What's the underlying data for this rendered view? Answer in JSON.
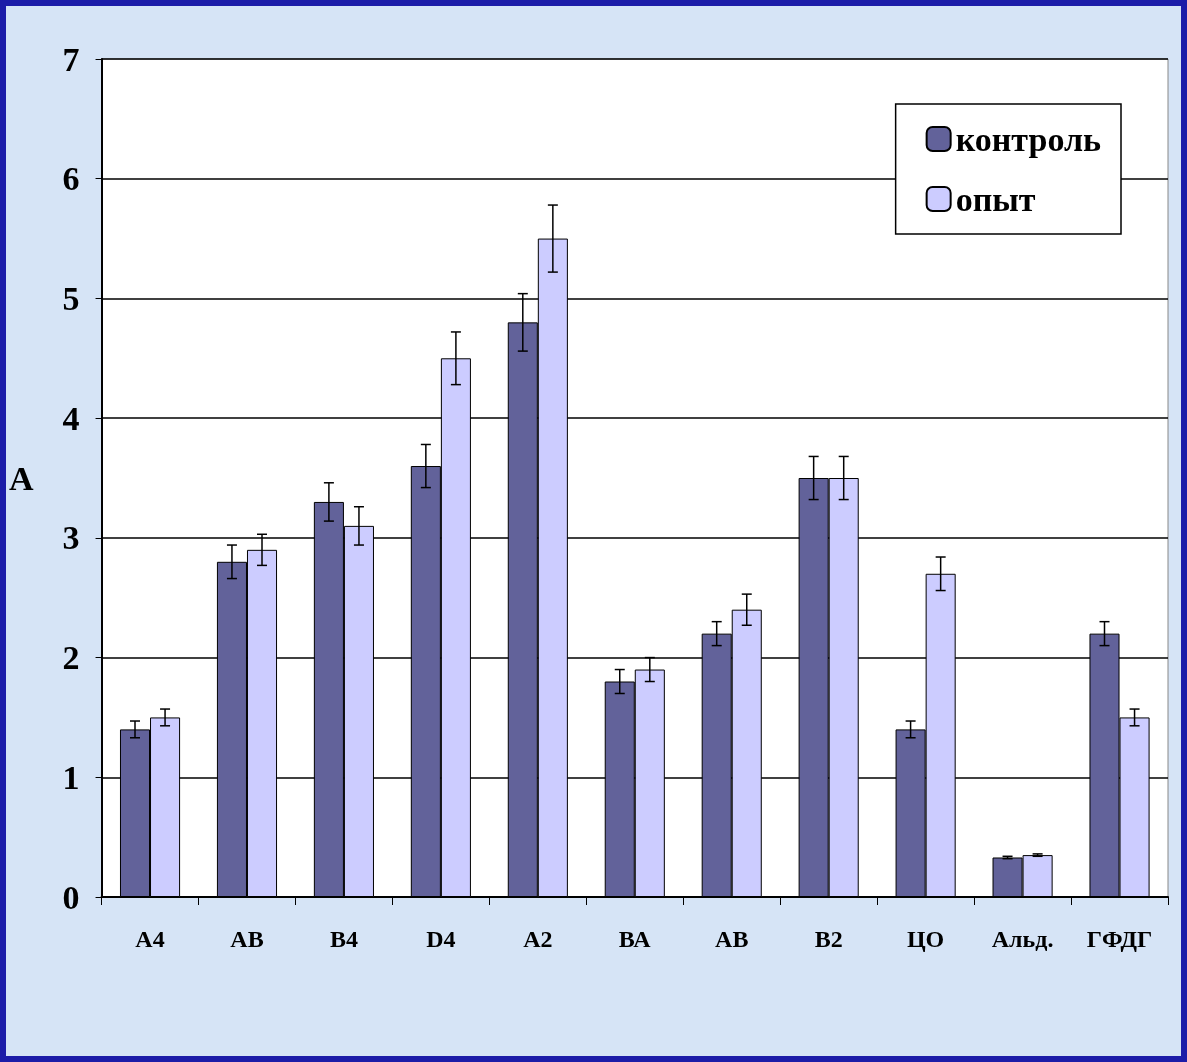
{
  "chart_data": {
    "type": "bar",
    "ylabel": "А",
    "categories": [
      "А4",
      "АВ",
      "В4",
      "D4",
      "А2",
      "ВА",
      "АВ",
      "В2",
      "ЦО",
      "Альд.",
      "ГФДГ"
    ],
    "series": [
      {
        "name": "контроль",
        "color": "#62629a",
        "values": [
          1.4,
          2.8,
          3.3,
          3.6,
          4.8,
          1.8,
          2.2,
          3.5,
          1.4,
          0.33,
          2.2
        ],
        "errors": [
          0.07,
          0.14,
          0.16,
          0.18,
          0.24,
          0.1,
          0.1,
          0.18,
          0.07,
          0.01,
          0.1
        ]
      },
      {
        "name": "опыт",
        "color": "#ccccff",
        "values": [
          1.5,
          2.9,
          3.1,
          4.5,
          5.5,
          1.9,
          2.4,
          3.5,
          2.7,
          0.35,
          1.5
        ],
        "errors": [
          0.07,
          0.13,
          0.16,
          0.22,
          0.28,
          0.1,
          0.13,
          0.18,
          0.14,
          0.01,
          0.07
        ]
      }
    ],
    "ylim": [
      0,
      7
    ],
    "yticks": [
      0,
      1,
      2,
      3,
      4,
      5,
      6,
      7
    ],
    "grid": "y",
    "legend": "top right"
  }
}
